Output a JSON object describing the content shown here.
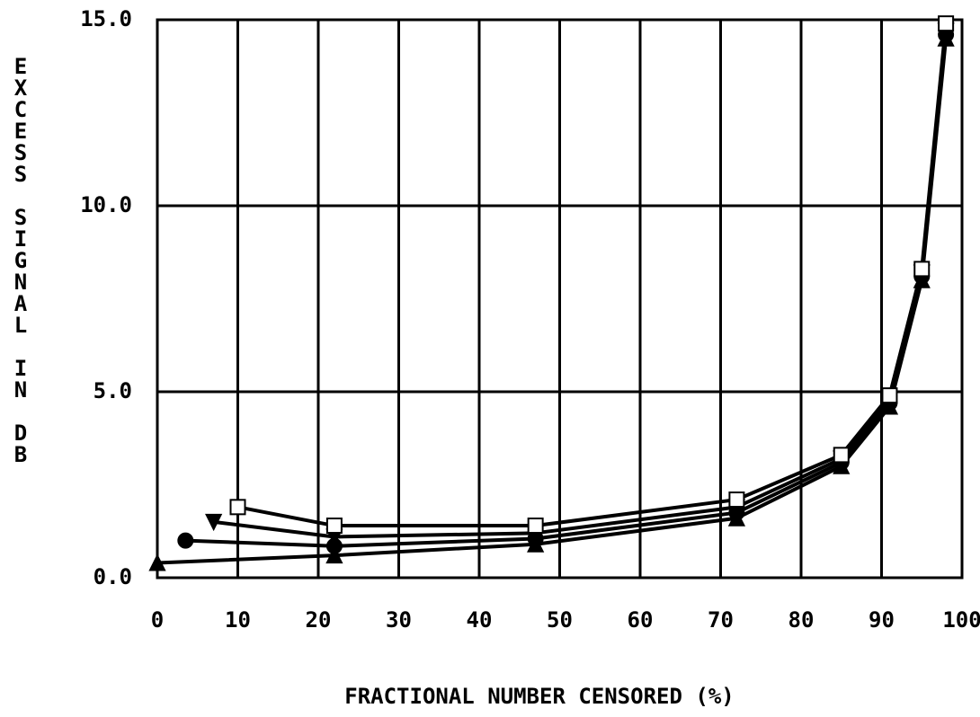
{
  "chart_data": {
    "type": "line",
    "x_label": "FRACTIONAL NUMBER CENSORED   (%)",
    "y_label": "EXCESS SIGNAL IN DB",
    "xlim": [
      0,
      100
    ],
    "ylim": [
      0,
      15
    ],
    "xticks": [
      0,
      10,
      20,
      30,
      40,
      50,
      60,
      70,
      80,
      90,
      100
    ],
    "yticks": [
      {
        "value": 0,
        "label": "0.0"
      },
      {
        "value": 5,
        "label": "5.0"
      },
      {
        "value": 10,
        "label": "10.0"
      },
      {
        "value": 15,
        "label": "15.0"
      }
    ],
    "grid": true,
    "series": [
      {
        "color": "#000000",
        "marker": "triangle",
        "x": [
          0,
          22,
          47,
          72,
          85,
          91,
          95,
          98
        ],
        "values": [
          0.4,
          0.6,
          0.9,
          1.6,
          3.0,
          4.6,
          8.0,
          14.5
        ]
      },
      {
        "color": "#000000",
        "marker": "circle",
        "x": [
          3.5,
          22,
          47,
          72,
          85,
          91,
          95,
          98
        ],
        "values": [
          1.0,
          0.85,
          1.05,
          1.75,
          3.1,
          4.7,
          8.1,
          14.6
        ]
      },
      {
        "color": "#000000",
        "marker": "down-triangle",
        "x": [
          7,
          22,
          47,
          72,
          85,
          91,
          95,
          98
        ],
        "values": [
          1.5,
          1.1,
          1.2,
          1.9,
          3.2,
          4.8,
          8.2,
          14.7
        ]
      },
      {
        "color": "#000000",
        "marker": "square",
        "x": [
          10,
          22,
          47,
          72,
          85,
          91,
          95,
          98
        ],
        "values": [
          1.9,
          1.4,
          1.4,
          2.1,
          3.3,
          4.9,
          8.3,
          14.9
        ]
      }
    ]
  }
}
